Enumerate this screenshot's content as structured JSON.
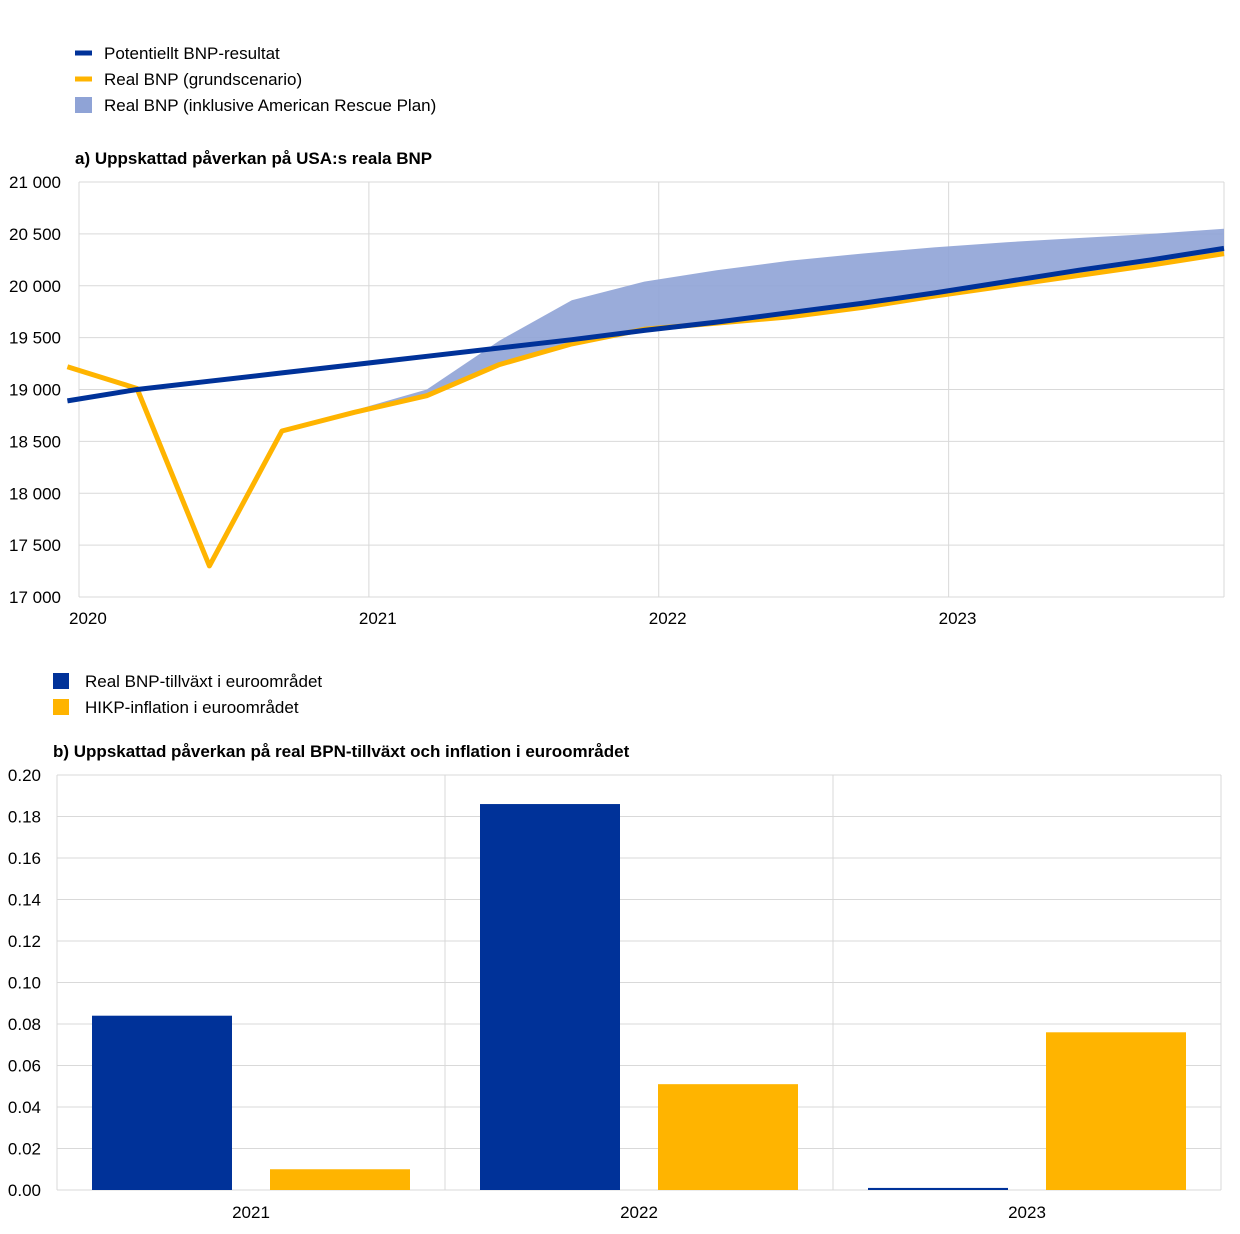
{
  "chart_data": [
    {
      "type": "line",
      "title": "a) Uppskattad påverkan på USA:s reala BNP",
      "legend_placement": "top-left",
      "grid": true,
      "ylim": [
        17000,
        21000
      ],
      "xlim": [
        2020.0,
        2023.95
      ],
      "x_ticks": [
        2020,
        2021,
        2022,
        2023
      ],
      "x_tick_labels": [
        "2020",
        "2021",
        "2022",
        "2023"
      ],
      "y_ticks": [
        17000,
        17500,
        18000,
        18500,
        19000,
        19500,
        20000,
        20500,
        21000
      ],
      "y_tick_labels": [
        "17 000",
        "17 500",
        "18 000",
        "18 500",
        "19 000",
        "19 500",
        "20 000",
        "20 500",
        "21 000"
      ],
      "series": [
        {
          "name": "Potentiellt BNP-resultat",
          "kind": "line",
          "color": "#003299",
          "x": [
            2019.96,
            2020.2,
            2020.45,
            2020.7,
            2020.95,
            2021.2,
            2021.45,
            2021.7,
            2021.95,
            2022.2,
            2022.45,
            2022.7,
            2022.95,
            2023.2,
            2023.45,
            2023.7,
            2023.95
          ],
          "y": [
            18890,
            19000,
            19080,
            19160,
            19240,
            19320,
            19400,
            19480,
            19570,
            19650,
            19740,
            19830,
            19930,
            20040,
            20150,
            20250,
            20360
          ]
        },
        {
          "name": "Real BNP (grundscenario)",
          "kind": "line",
          "color": "#FFB400",
          "x": [
            2019.96,
            2020.2,
            2020.45,
            2020.7,
            2020.95,
            2021.2,
            2021.45,
            2021.7,
            2021.95,
            2022.2,
            2022.45,
            2022.7,
            2022.95,
            2023.2,
            2023.45,
            2023.7,
            2023.95
          ],
          "y": [
            19220,
            19010,
            17300,
            18600,
            18780,
            18940,
            19240,
            19440,
            19580,
            19640,
            19700,
            19790,
            19900,
            20000,
            20100,
            20200,
            20310
          ]
        },
        {
          "name": "Real BNP (inklusive American Rescue Plan)",
          "kind": "area",
          "color": "#8FA3D6",
          "x": [
            2020.95,
            2021.2,
            2021.45,
            2021.7,
            2021.95,
            2022.2,
            2022.45,
            2022.7,
            2022.95,
            2023.2,
            2023.45,
            2023.7,
            2023.95
          ],
          "y": [
            18800,
            19000,
            19470,
            19860,
            20040,
            20150,
            20240,
            20310,
            20370,
            20420,
            20460,
            20500,
            20550
          ]
        }
      ]
    },
    {
      "type": "bar",
      "title": "b) Uppskattad påverkan på real BPN-tillväxt och inflation i euroområdet",
      "legend_placement": "top-left",
      "grid": true,
      "categories": [
        "2021",
        "2022",
        "2023"
      ],
      "ylim": [
        0,
        0.2
      ],
      "y_ticks": [
        0,
        0.02,
        0.04,
        0.06,
        0.08,
        0.1,
        0.12,
        0.14,
        0.16,
        0.18,
        0.2
      ],
      "y_tick_labels": [
        "0.00",
        "0.02",
        "0.04",
        "0.06",
        "0.08",
        "0.10",
        "0.12",
        "0.14",
        "0.16",
        "0.18",
        "0.20"
      ],
      "series": [
        {
          "name": "Real BNP-tillväxt i euroområdet",
          "color": "#003299",
          "values": [
            0.084,
            0.186,
            0.001
          ]
        },
        {
          "name": "HIKP-inflation i euroområdet",
          "color": "#FFB400",
          "values": [
            0.01,
            0.051,
            0.076
          ]
        }
      ]
    }
  ]
}
